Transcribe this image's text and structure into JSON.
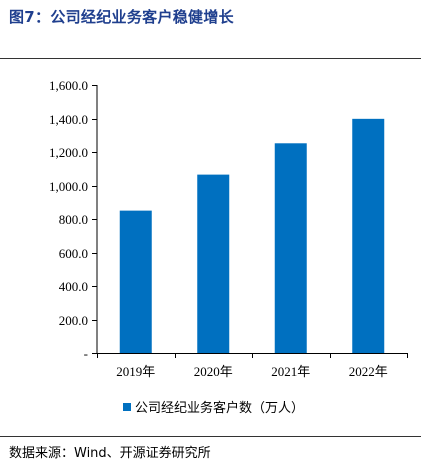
{
  "figure": {
    "title": "图7：公司经纪业务客户稳健增长",
    "source": "数据来源：Wind、开源证券研究所"
  },
  "colors": {
    "title": "#1f3f8e",
    "bar": "#0070c0",
    "axis": "#000000",
    "rule": "#333333"
  },
  "chart_data": {
    "type": "bar",
    "title": "",
    "xlabel": "",
    "ylabel": "",
    "categories": [
      "2019年",
      "2020年",
      "2021年",
      "2022年"
    ],
    "series": [
      {
        "name": "公司经纪业务客户数（万人）",
        "values": [
          850,
          1065,
          1252,
          1398
        ]
      }
    ],
    "ylim": [
      0,
      1600
    ],
    "yticks": [
      0,
      200,
      400,
      600,
      800,
      1000,
      1200,
      1400,
      1600
    ],
    "ytick_labels": [
      "-",
      "200.0",
      "400.0",
      "600.0",
      "800.0",
      "1,000.0",
      "1,200.0",
      "1,400.0",
      "1,600.0"
    ],
    "grid": false,
    "legend_position": "bottom-center"
  }
}
